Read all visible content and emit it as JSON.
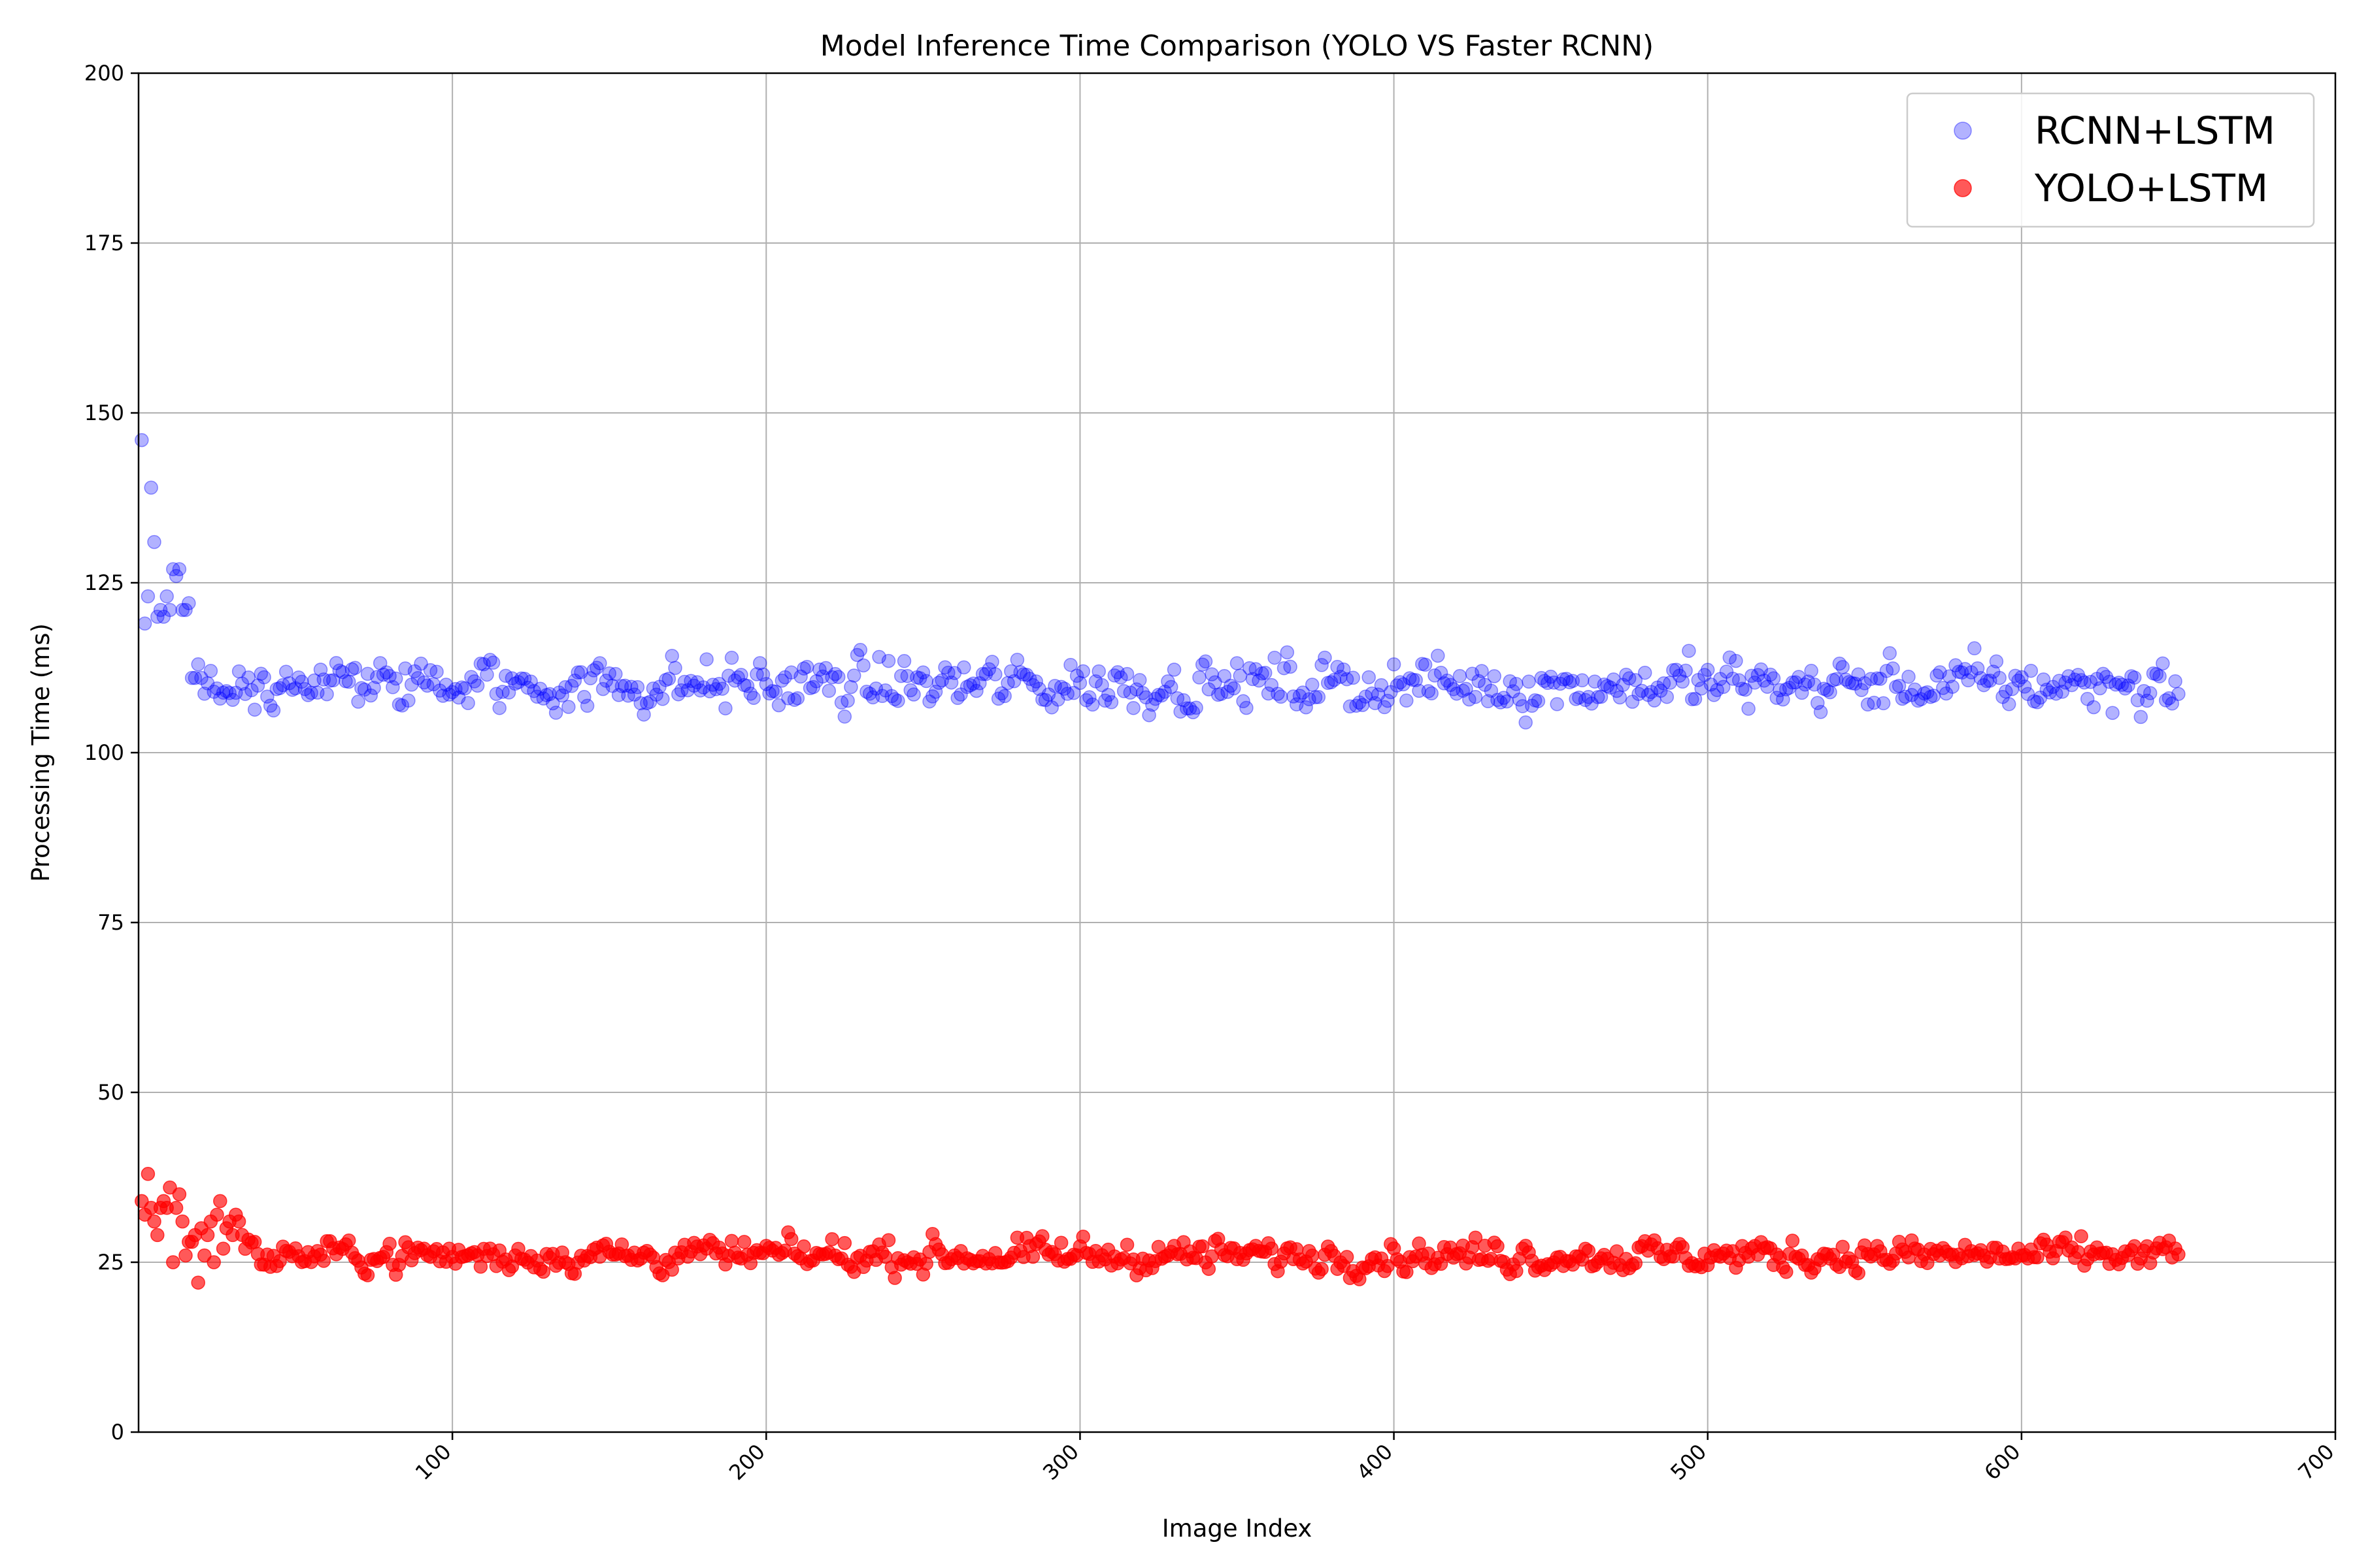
{
  "chart_data": {
    "type": "scatter",
    "title": "Model Inference Time Comparison (YOLO VS Faster RCNN)",
    "xlabel": "Image Index",
    "ylabel": "Processing Time (ms)",
    "xlim": [
      0,
      700
    ],
    "ylim": [
      0,
      200
    ],
    "xticks": [
      100,
      200,
      300,
      400,
      500,
      600,
      700
    ],
    "yticks": [
      0,
      25,
      50,
      75,
      100,
      125,
      150,
      175,
      200
    ],
    "grid": true,
    "legend_position": "top-right",
    "n_points": 650,
    "series": [
      {
        "name": "RCNN+LSTM",
        "color": "#0000ff",
        "opacity": 0.3,
        "x_range": [
          1,
          650
        ],
        "initial_values": [
          146,
          119,
          123,
          139,
          131,
          120,
          121,
          120,
          123,
          121,
          127,
          126,
          127,
          121,
          121,
          122,
          111,
          111,
          113,
          111
        ],
        "steady_mean": 110,
        "steady_spread": 5,
        "min_value": 104,
        "max_value": 119
      },
      {
        "name": "YOLO+LSTM",
        "color": "#ff0000",
        "opacity": 0.65,
        "x_range": [
          1,
          650
        ],
        "initial_values": [
          34,
          32,
          38,
          33,
          31,
          29,
          33,
          34,
          33,
          36,
          25,
          33,
          35,
          31,
          26,
          28,
          28,
          29,
          22,
          30,
          26,
          29,
          31,
          25,
          32,
          34,
          27,
          30,
          31,
          29,
          32,
          31
        ],
        "steady_mean": 26,
        "steady_spread": 3,
        "min_value": 21,
        "max_value": 32
      }
    ]
  }
}
